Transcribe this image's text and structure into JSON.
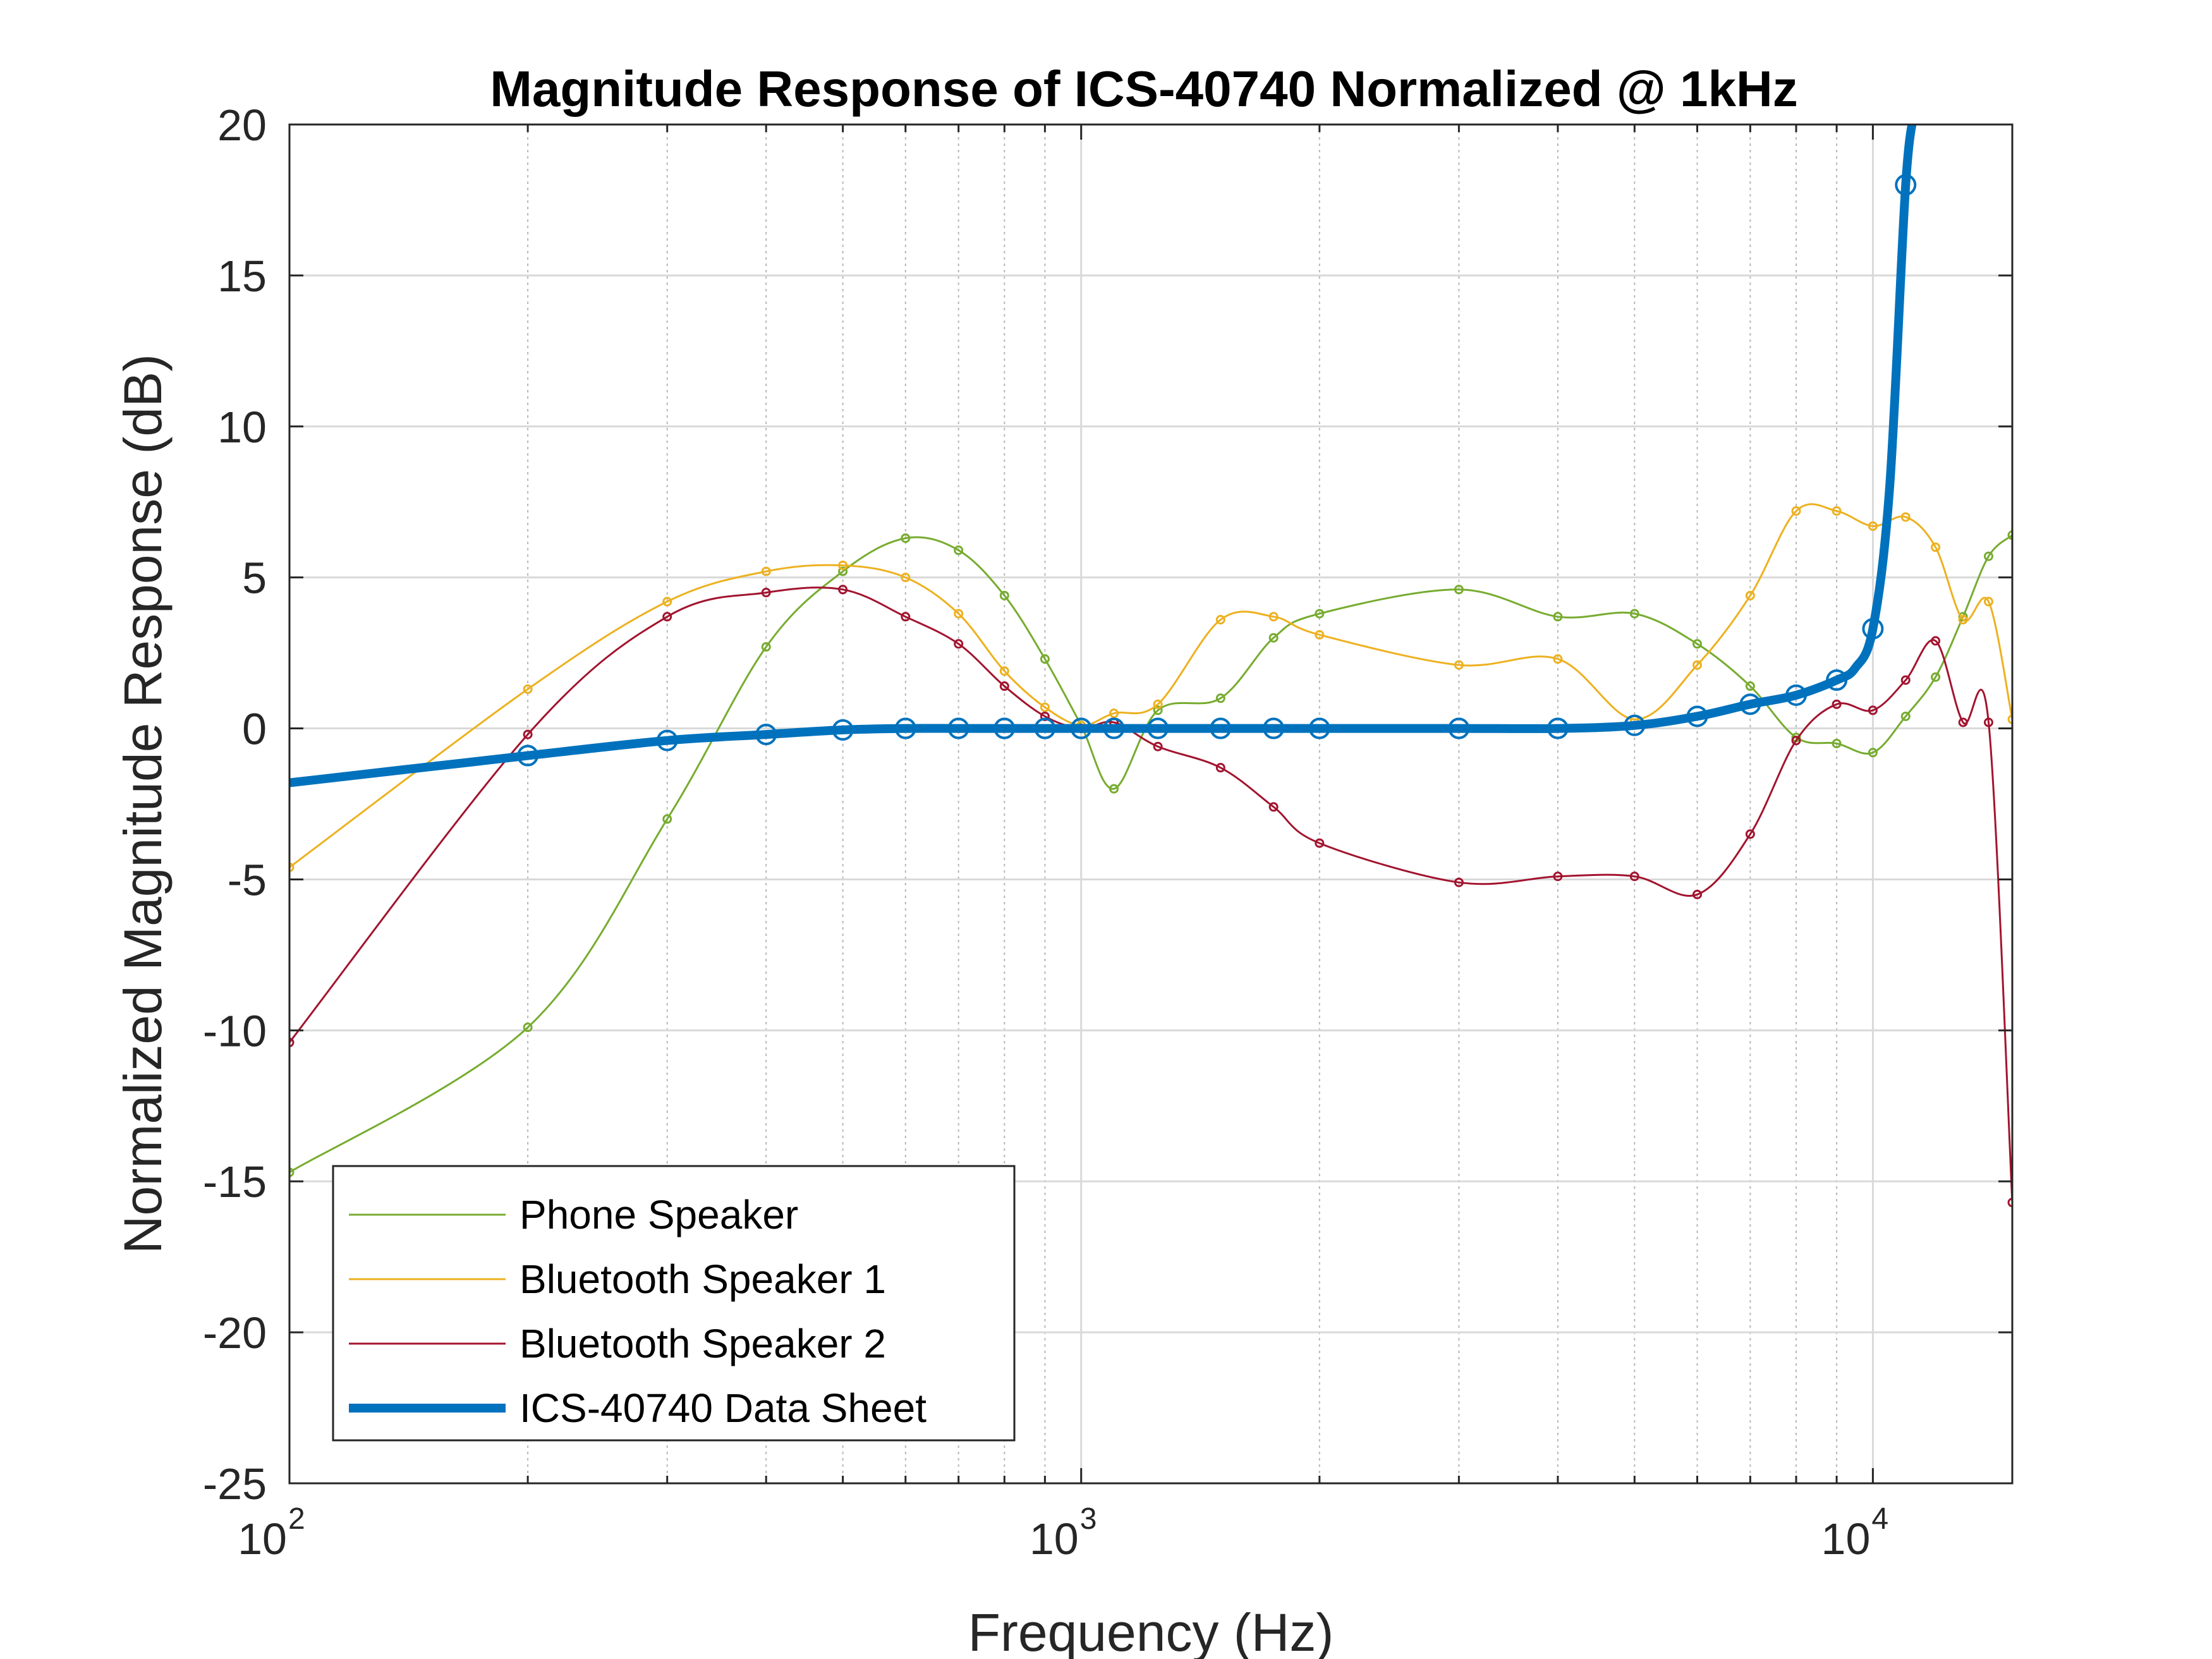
{
  "chart_data": {
    "type": "line",
    "title": "Magnitude Response of ICS-40740 Normalized @ 1kHz",
    "xlabel": "Frequency (Hz)",
    "ylabel": "Normalized Magnitude Response (dB)",
    "xscale": "log",
    "xlim": [
      100,
      15000
    ],
    "ylim": [
      -25,
      20
    ],
    "grid": true,
    "x_ticks": [
      {
        "value": 100,
        "base": "10",
        "exp": "2"
      },
      {
        "value": 1000,
        "base": "10",
        "exp": "3"
      },
      {
        "value": 10000,
        "base": "10",
        "exp": "4"
      }
    ],
    "y_ticks": [
      {
        "value": 20,
        "label": "20"
      },
      {
        "value": 15,
        "label": "15"
      },
      {
        "value": 10,
        "label": "10"
      },
      {
        "value": 5,
        "label": "5"
      },
      {
        "value": 0,
        "label": "0"
      },
      {
        "value": -5,
        "label": "-5"
      },
      {
        "value": -10,
        "label": "-10"
      },
      {
        "value": -15,
        "label": "-15"
      },
      {
        "value": -20,
        "label": "-20"
      },
      {
        "value": -25,
        "label": "-25"
      }
    ],
    "legend_position": "bottom-left",
    "series": [
      {
        "name": "Phone Speaker",
        "color": "#77AC30",
        "width": 3,
        "marker": "small",
        "x": [
          100,
          200,
          300,
          400,
          500,
          600,
          700,
          800,
          900,
          1000,
          1100,
          1250,
          1500,
          1750,
          2000,
          3000,
          4000,
          5000,
          6000,
          7000,
          8000,
          9000,
          10000,
          11000,
          12000,
          13000,
          14000,
          15000
        ],
        "y": [
          -14.7,
          -9.9,
          -3.0,
          2.7,
          5.2,
          6.3,
          5.9,
          4.4,
          2.3,
          0.1,
          -2.0,
          0.6,
          1.0,
          3.0,
          3.8,
          4.6,
          3.7,
          3.8,
          2.8,
          1.4,
          -0.3,
          -0.5,
          -0.8,
          0.4,
          1.7,
          3.7,
          5.7,
          6.4
        ]
      },
      {
        "name": "Bluetooth Speaker 1",
        "color": "#EDB120",
        "width": 3,
        "marker": "small",
        "x": [
          100,
          200,
          300,
          400,
          500,
          600,
          700,
          800,
          900,
          1000,
          1100,
          1250,
          1500,
          1750,
          2000,
          3000,
          4000,
          5000,
          6000,
          7000,
          8000,
          9000,
          10000,
          11000,
          12000,
          13000,
          14000,
          15000
        ],
        "y": [
          -4.6,
          1.3,
          4.2,
          5.2,
          5.4,
          5.0,
          3.8,
          1.9,
          0.7,
          0.1,
          0.5,
          0.8,
          3.6,
          3.7,
          3.1,
          2.1,
          2.3,
          0.3,
          2.1,
          4.4,
          7.2,
          7.2,
          6.7,
          7.0,
          6.0,
          3.6,
          4.2,
          0.3
        ]
      },
      {
        "name": "Bluetooth Speaker 2",
        "color": "#A2142F",
        "width": 3,
        "marker": "small",
        "x": [
          100,
          200,
          300,
          400,
          500,
          600,
          700,
          800,
          900,
          1000,
          1100,
          1250,
          1500,
          1750,
          2000,
          3000,
          4000,
          5000,
          6000,
          7000,
          8000,
          9000,
          10000,
          11000,
          12000,
          13000,
          14000,
          15000
        ],
        "y": [
          -10.4,
          -0.2,
          3.7,
          4.5,
          4.6,
          3.7,
          2.8,
          1.4,
          0.4,
          0.0,
          0.2,
          -0.6,
          -1.3,
          -2.6,
          -3.8,
          -5.1,
          -4.9,
          -4.9,
          -5.5,
          -3.5,
          -0.4,
          0.8,
          0.6,
          1.6,
          2.9,
          0.2,
          0.2,
          -15.7
        ]
      },
      {
        "name": "ICS-40740 Data Sheet",
        "color": "#0072BD",
        "width": 14,
        "marker": "circle",
        "x": [
          100,
          200,
          300,
          400,
          500,
          600,
          700,
          800,
          900,
          1000,
          1100,
          1250,
          1500,
          1750,
          2000,
          3000,
          4000,
          5000,
          6000,
          7000,
          8000,
          9000,
          9500,
          10000,
          10500,
          11000,
          11300
        ],
        "y": [
          -1.8,
          -0.9,
          -0.4,
          -0.2,
          -0.05,
          0.0,
          0.0,
          0.0,
          0.0,
          0.0,
          0.0,
          0.0,
          0.0,
          0.0,
          0.0,
          0.0,
          0.0,
          0.1,
          0.4,
          0.8,
          1.1,
          1.6,
          2.0,
          3.3,
          8.0,
          18.0,
          20.5
        ],
        "marker_x": [
          200,
          300,
          400,
          500,
          600,
          700,
          800,
          900,
          1000,
          1100,
          1250,
          1500,
          1750,
          2000,
          3000,
          4000,
          5000,
          6000,
          7000,
          8000,
          9000,
          10000,
          11000
        ],
        "marker_y": [
          -0.9,
          -0.4,
          -0.2,
          -0.05,
          0.0,
          0.0,
          0.0,
          0.0,
          0.0,
          0.0,
          0.0,
          0.0,
          0.0,
          0.0,
          0.0,
          0.0,
          0.1,
          0.4,
          0.8,
          1.1,
          1.6,
          3.3,
          18.0
        ]
      }
    ]
  }
}
